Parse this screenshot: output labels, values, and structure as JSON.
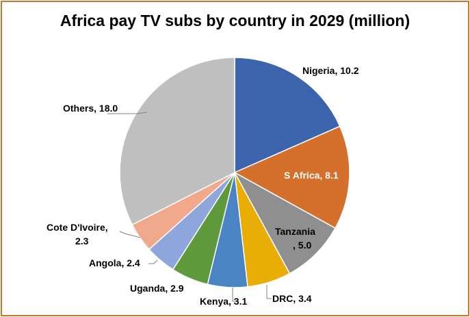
{
  "chart_data": {
    "type": "pie",
    "title": "Africa pay TV subs by country in 2029 (million)",
    "slices": [
      {
        "name": "Nigeria",
        "value": 10.2,
        "color": "#3c64ad",
        "label_lines": [
          "Nigeria, 10.2"
        ]
      },
      {
        "name": "S Africa",
        "value": 8.1,
        "color": "#d46f2c",
        "label_lines": [
          "S Africa, 8.1"
        ]
      },
      {
        "name": "Tanzania",
        "value": 5.0,
        "color": "#8f8f8f",
        "label_lines": [
          "Tanzania",
          ", 5.0"
        ]
      },
      {
        "name": "DRC",
        "value": 3.4,
        "color": "#e8ae06",
        "label_lines": [
          "DRC, 3.4"
        ]
      },
      {
        "name": "Kenya",
        "value": 3.1,
        "color": "#4a84c4",
        "label_lines": [
          "Kenya, 3.1"
        ]
      },
      {
        "name": "Uganda",
        "value": 2.9,
        "color": "#5e9a3c",
        "label_lines": [
          "Uganda, 2.9"
        ]
      },
      {
        "name": "Angola",
        "value": 2.4,
        "color": "#8ea6db",
        "label_lines": [
          "Angola, 2.4"
        ]
      },
      {
        "name": "Cote D'Ivoire",
        "value": 2.3,
        "color": "#f0a98a",
        "label_lines": [
          "Cote D'Ivoire,",
          "2.3"
        ]
      },
      {
        "name": "Others",
        "value": 18.0,
        "color": "#bfbfbf",
        "label_lines": [
          "Others, 18.0"
        ]
      }
    ],
    "start_angle": "12 o'clock",
    "direction": "clockwise",
    "legend": "none"
  }
}
